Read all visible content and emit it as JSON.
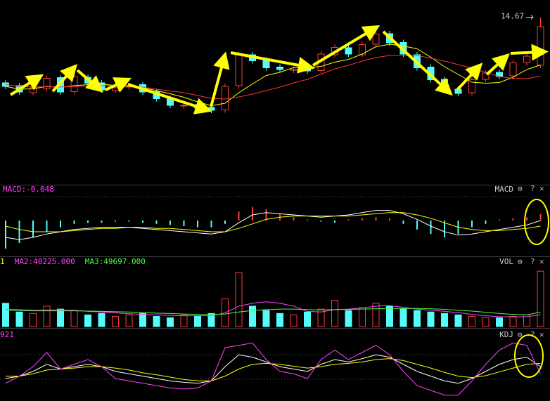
{
  "chart_data": [
    {
      "type": "candlestick",
      "open": [
        12.8,
        12.72,
        12.52,
        12.64,
        12.95,
        12.55,
        12.96,
        12.8,
        12.58,
        12.68,
        12.75,
        12.55,
        12.36,
        12.14,
        12.18,
        12.1,
        12.03,
        12.72,
        13.6,
        13.45,
        13.25,
        13.16,
        13.2,
        13.15,
        13.6,
        13.8,
        13.6,
        13.9,
        14.2,
        13.95,
        13.6,
        13.25,
        12.9,
        12.62,
        12.52,
        12.9,
        13.1,
        13.0,
        13.38,
        13.3
      ],
      "close": [
        12.7,
        12.54,
        12.66,
        12.93,
        12.54,
        12.98,
        12.79,
        12.6,
        12.66,
        12.73,
        12.54,
        12.35,
        12.16,
        12.16,
        12.08,
        12.02,
        12.7,
        13.62,
        13.43,
        13.23,
        13.18,
        13.18,
        13.14,
        13.62,
        13.81,
        13.62,
        13.89,
        14.19,
        13.94,
        13.62,
        13.23,
        12.89,
        12.6,
        12.5,
        12.89,
        13.08,
        12.98,
        13.37,
        13.56,
        14.4
      ],
      "high": [
        12.88,
        12.8,
        12.74,
        13.01,
        13.03,
        13.06,
        13.04,
        12.88,
        12.74,
        12.81,
        12.83,
        12.63,
        12.44,
        12.24,
        12.26,
        12.18,
        12.78,
        13.7,
        13.68,
        13.53,
        13.33,
        13.26,
        13.28,
        13.7,
        13.89,
        13.88,
        13.97,
        14.27,
        14.28,
        14.03,
        13.68,
        13.33,
        12.98,
        12.7,
        12.97,
        13.16,
        13.18,
        13.45,
        13.64,
        14.67
      ],
      "low": [
        12.62,
        12.46,
        12.44,
        12.56,
        12.46,
        12.47,
        12.71,
        12.52,
        12.5,
        12.6,
        12.46,
        12.27,
        12.08,
        12.06,
        12.0,
        11.94,
        11.95,
        12.64,
        13.35,
        13.15,
        13.1,
        13.08,
        13.06,
        13.07,
        13.52,
        13.54,
        13.52,
        13.82,
        13.86,
        13.54,
        13.15,
        12.81,
        12.52,
        12.42,
        12.44,
        12.82,
        12.9,
        12.92,
        13.3,
        13.22
      ],
      "up_color": "#ff3c3c",
      "down_color": "#54fcfc",
      "series": [
        {
          "color": "#ffff00",
          "values": [
            12.7,
            12.62,
            12.63,
            12.7,
            12.67,
            12.72,
            12.75,
            12.77,
            12.72,
            12.7,
            12.66,
            12.58,
            12.49,
            12.39,
            12.26,
            12.15,
            12.22,
            12.52,
            12.77,
            13.01,
            13.1,
            13.24,
            13.23,
            13.27,
            13.39,
            13.47,
            13.62,
            13.83,
            13.9,
            13.85,
            13.77,
            13.53,
            13.26,
            13.04,
            12.82,
            12.79,
            12.81,
            12.96,
            13.18,
            13.31
          ]
        },
        {
          "color": "#ff3232",
          "values": [
            12.75,
            12.7,
            12.68,
            12.69,
            12.68,
            12.7,
            12.71,
            12.72,
            12.72,
            12.71,
            12.68,
            12.62,
            12.57,
            12.52,
            12.44,
            12.36,
            12.34,
            12.4,
            12.48,
            12.58,
            12.68,
            12.8,
            12.9,
            13.05,
            13.2,
            13.3,
            13.42,
            13.52,
            13.58,
            13.58,
            13.58,
            13.5,
            13.42,
            13.32,
            13.22,
            13.1,
            12.98,
            12.93,
            12.92,
            12.99
          ]
        }
      ],
      "high_mark": 14.67,
      "ylim": [
        10,
        15
      ]
    },
    {
      "type": "macd",
      "name": "MACD",
      "readout": {
        "value": -0.048,
        "label": "MACD:-0.048"
      },
      "values": [
        -0.25,
        -0.2,
        -0.15,
        -0.1,
        -0.06,
        -0.03,
        -0.02,
        -0.02,
        -0.01,
        -0.01,
        -0.02,
        -0.03,
        -0.04,
        -0.05,
        -0.06,
        -0.06,
        -0.03,
        0.08,
        0.12,
        0.1,
        0.06,
        0.03,
        0.01,
        -0.01,
        -0.02,
        0.01,
        0.02,
        0.03,
        0.02,
        -0.03,
        -0.08,
        -0.12,
        -0.15,
        -0.12,
        -0.06,
        -0.03,
        0.01,
        0.02,
        0.03,
        0.06
      ],
      "up_color": "#ff3c3c",
      "down_color": "#54fcfc",
      "series": [
        {
          "color": "#ffffff",
          "values": [
            -0.15,
            -0.17,
            -0.15,
            -0.12,
            -0.1,
            -0.08,
            -0.07,
            -0.06,
            -0.06,
            -0.06,
            -0.07,
            -0.08,
            -0.09,
            -0.1,
            -0.11,
            -0.12,
            -0.1,
            -0.02,
            0.05,
            0.07,
            0.06,
            0.05,
            0.04,
            0.03,
            0.04,
            0.05,
            0.07,
            0.09,
            0.09,
            0.06,
            0.01,
            -0.05,
            -0.1,
            -0.13,
            -0.12,
            -0.1,
            -0.08,
            -0.06,
            -0.04,
            0.0
          ]
        },
        {
          "color": "#ffff00",
          "values": [
            -0.05,
            -0.08,
            -0.1,
            -0.1,
            -0.1,
            -0.09,
            -0.08,
            -0.07,
            -0.07,
            -0.06,
            -0.06,
            -0.07,
            -0.07,
            -0.08,
            -0.09,
            -0.1,
            -0.1,
            -0.07,
            -0.03,
            0.01,
            0.03,
            0.04,
            0.04,
            0.04,
            0.04,
            0.04,
            0.05,
            0.06,
            0.07,
            0.07,
            0.05,
            0.02,
            -0.02,
            -0.06,
            -0.08,
            -0.09,
            -0.09,
            -0.08,
            -0.07,
            -0.05
          ]
        }
      ],
      "ylim": [
        -0.3,
        0.2
      ]
    },
    {
      "type": "volume",
      "name": "VOL",
      "readouts": [
        {
          "label": "1",
          "color": "#ffff00"
        },
        {
          "value": 40225,
          "label": "MA2:40225.000",
          "color": "#ff44ff"
        },
        {
          "value": 49697,
          "label": "MA3:49697.000",
          "color": "#44ff44"
        }
      ],
      "values": [
        80000,
        50000,
        45000,
        70000,
        60000,
        55000,
        40000,
        45000,
        35000,
        40000,
        45000,
        35000,
        30000,
        40000,
        35000,
        45000,
        95000,
        185000,
        70000,
        55000,
        45000,
        40000,
        50000,
        60000,
        90000,
        55000,
        65000,
        80000,
        70000,
        60000,
        55000,
        50000,
        45000,
        40000,
        35000,
        30000,
        30000,
        35000,
        40000,
        190000
      ],
      "series": [
        {
          "color": "#ff44ff",
          "values": [
            60000,
            58000,
            56000,
            57000,
            57000,
            56000,
            52000,
            50000,
            47000,
            44000,
            42000,
            40000,
            38000,
            37000,
            37000,
            37000,
            47000,
            70000,
            80000,
            85000,
            80000,
            70000,
            52000,
            50000,
            58000,
            60000,
            64000,
            70000,
            72000,
            66000,
            60000,
            56000,
            52000,
            48000,
            42000,
            37000,
            34000,
            33000,
            34000,
            40225
          ]
        },
        {
          "color": "#44ff44",
          "values": [
            55000,
            55000,
            54000,
            54000,
            54000,
            54000,
            53000,
            52000,
            51000,
            50000,
            48000,
            46000,
            45000,
            43000,
            42000,
            41000,
            43000,
            50000,
            55000,
            58000,
            60000,
            60000,
            58000,
            57000,
            58000,
            59000,
            60000,
            61000,
            62000,
            62000,
            62000,
            61000,
            59000,
            56000,
            53000,
            49000,
            45000,
            42000,
            40000,
            49697
          ]
        }
      ],
      "ylim": [
        0,
        200000
      ]
    },
    {
      "type": "line",
      "name": "KDJ",
      "readouts": [
        {
          "label": "921",
          "color": "#ff44ff"
        }
      ],
      "series": [
        {
          "color": "#ffffff",
          "values": [
            30,
            35,
            45,
            60,
            50,
            55,
            60,
            55,
            45,
            40,
            35,
            30,
            25,
            22,
            20,
            25,
            55,
            80,
            75,
            65,
            55,
            50,
            45,
            60,
            70,
            65,
            72,
            80,
            75,
            60,
            45,
            35,
            25,
            20,
            30,
            45,
            60,
            70,
            75,
            55
          ]
        },
        {
          "color": "#ffff00",
          "values": [
            35,
            35,
            40,
            48,
            50,
            52,
            55,
            55,
            52,
            48,
            42,
            38,
            33,
            28,
            25,
            25,
            35,
            50,
            60,
            62,
            60,
            56,
            52,
            55,
            60,
            62,
            65,
            70,
            72,
            68,
            60,
            52,
            43,
            35,
            32,
            36,
            44,
            52,
            60,
            62
          ]
        },
        {
          "color": "#ff44ff",
          "values": [
            20,
            35,
            55,
            85,
            50,
            60,
            70,
            55,
            30,
            25,
            20,
            15,
            10,
            8,
            10,
            25,
            95,
            100,
            105,
            70,
            45,
            40,
            30,
            70,
            90,
            70,
            85,
            100,
            80,
            45,
            15,
            5,
            -5,
            -5,
            25,
            60,
            90,
            105,
            100,
            40
          ]
        }
      ],
      "ylim": [
        -10,
        110
      ]
    }
  ]
}
